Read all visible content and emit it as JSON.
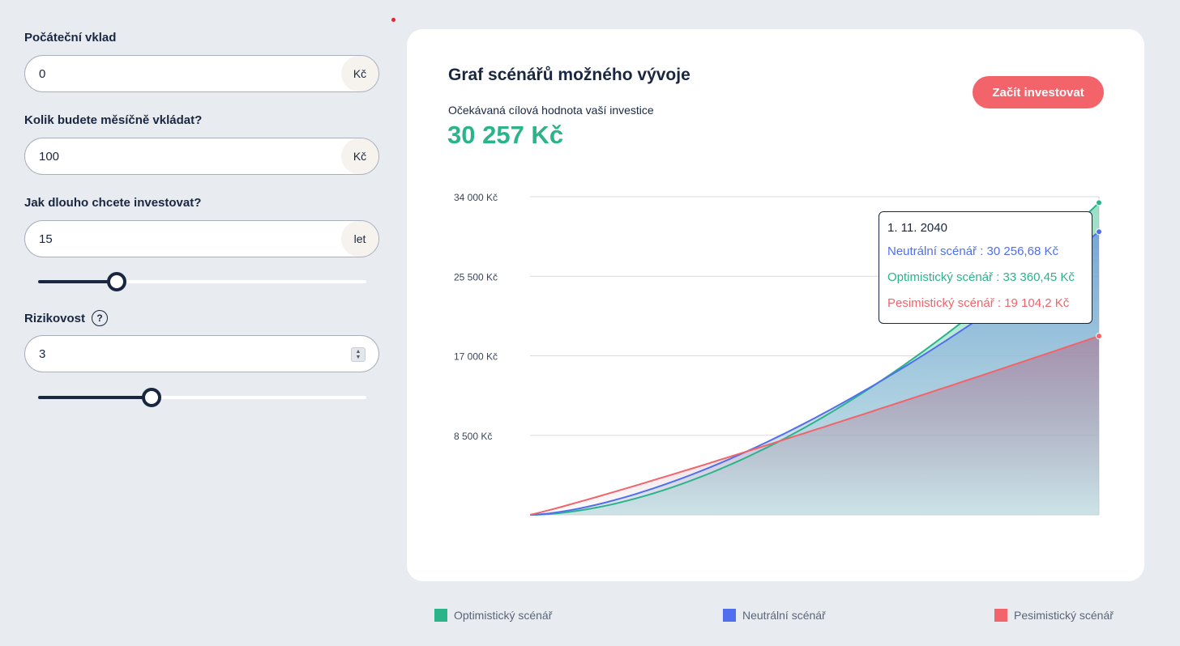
{
  "form": {
    "initial_deposit": {
      "label": "Počáteční vklad",
      "value": "0",
      "unit": "Kč"
    },
    "monthly_deposit": {
      "label": "Kolik budete měsíčně vkládat?",
      "value": "100",
      "unit": "Kč"
    },
    "duration": {
      "label": "Jak dlouho chcete investovat?",
      "value": "15",
      "unit": "let",
      "slider_fraction": 0.24
    },
    "risk": {
      "label": "Rizikovost",
      "help_icon": "question-bubble-icon",
      "value": "3",
      "slider_fraction": 0.345
    }
  },
  "card": {
    "title": "Graf scénářů možného vývoje",
    "subtitle": "Očekávaná cílová hodnota vaší investice",
    "value": "30 257 Kč",
    "cta_label": "Začít investovat"
  },
  "tooltip": {
    "date": "1. 11. 2040",
    "neutral": "Neutrální scénář : 30 256,68 Kč",
    "optimistic": "Optimistický scénář : 33 360,45 Kč",
    "pessimistic": "Pesimistický scénář : 19 104,2 Kč"
  },
  "legend": [
    {
      "label": "Optimistický scénář",
      "color": "#2bb38a"
    },
    {
      "label": "Neutrální scénář",
      "color": "#4f6ff0"
    },
    {
      "label": "Pesimistický scénář",
      "color": "#f2636a"
    }
  ],
  "chart_data": {
    "type": "area",
    "y_ticks": [
      "34 000 Kč",
      "25 500 Kč",
      "17 000 Kč",
      "8 500 Kč"
    ],
    "y_tick_values": [
      34000,
      25500,
      17000,
      8500
    ],
    "ylim": [
      0,
      34000
    ],
    "x_range_years": [
      0,
      15
    ],
    "series": [
      {
        "name": "Optimistický scénář",
        "color": "#2bb38a",
        "end_value": 33360.45
      },
      {
        "name": "Neutrální scénář",
        "color": "#4f6ff0",
        "end_value": 30256.68
      },
      {
        "name": "Pesimistický scénář",
        "color": "#f2636a",
        "end_value": 19104.2
      }
    ],
    "grid": true
  }
}
